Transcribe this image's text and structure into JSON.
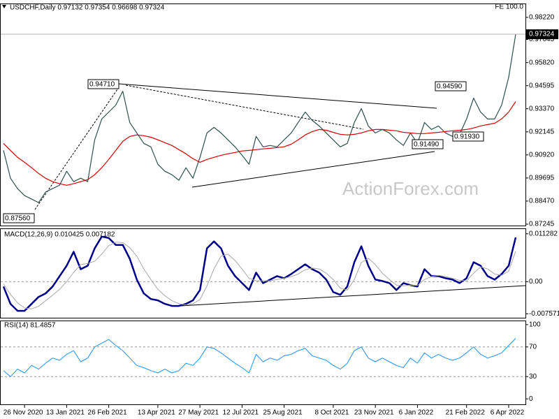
{
  "chart_data": [
    {
      "type": "line",
      "title": "USDCHF,Daily  0.97132 0.97354 0.96698 0.97324",
      "subtitle": "FE 100.0",
      "watermark": "ActionForex.com",
      "annotations": [
        "0.94710",
        "0.87560",
        "0.94590",
        "0.91490",
        "0.91930"
      ],
      "categories": [
        null,
        null,
        null,
        "26 Nov 2020",
        null,
        null,
        null,
        null,
        null,
        "13 Jan 2021",
        null,
        null,
        null,
        null,
        null,
        "26 Feb 2021",
        null,
        null,
        null,
        null,
        null,
        null,
        "13 Apr 2021",
        null,
        null,
        null,
        null,
        null,
        "27 May 2021",
        null,
        null,
        null,
        null,
        null,
        "12 Jul 2021",
        null,
        null,
        null,
        null,
        null,
        "25 Aug 2021",
        null,
        null,
        null,
        null,
        null,
        null,
        "8 Oct 2021",
        null,
        null,
        null,
        null,
        null,
        "23 Nov 2021",
        null,
        null,
        null,
        null,
        null,
        "6 Jan 2022",
        null,
        null,
        null,
        null,
        null,
        null,
        "21 Feb 2022",
        null,
        null,
        null,
        null,
        null,
        "6 Apr 2022",
        null
      ],
      "series": [
        {
          "color": "#2f4f4f",
          "values": [
            0.91163,
            0.89684,
            0.8913,
            0.88761,
            0.88576,
            0.88391,
            0.88946,
            0.8913,
            0.89315,
            0.90054,
            0.895,
            0.89684,
            0.895,
            0.91717,
            0.92825,
            0.93195,
            0.93564,
            0.94303,
            0.92641,
            0.92086,
            0.91532,
            0.91348,
            0.90424,
            0.90054,
            0.89869,
            0.89574,
            0.90239,
            0.89684,
            0.90793,
            0.92086,
            0.92382,
            0.92086,
            0.91717,
            0.91348,
            0.90904,
            0.90424,
            0.91902,
            0.91348,
            0.91421,
            0.91348,
            0.91717,
            0.92086,
            0.92641,
            0.93195,
            0.92752,
            0.92456,
            0.92086,
            0.91717,
            0.91348,
            0.91532,
            0.92641,
            0.93379,
            0.92456,
            0.92086,
            0.92271,
            0.92086,
            0.91717,
            0.91421,
            0.92086,
            0.91532,
            0.92641,
            0.92271,
            0.92456,
            0.92086,
            0.91902,
            0.92012,
            0.92825,
            0.93934,
            0.93195,
            0.92825,
            0.92825,
            0.93564,
            0.95042,
            0.97324
          ]
        },
        {
          "color": "#d40000",
          "values": [
            0.9153,
            0.9116,
            0.9079,
            0.9053,
            0.9024,
            0.8994,
            0.8968,
            0.895,
            0.8939,
            0.8931,
            0.8939,
            0.895,
            0.8961,
            0.8987,
            0.9024,
            0.9068,
            0.9116,
            0.9164,
            0.919,
            0.9198,
            0.9194,
            0.9186,
            0.9172,
            0.9157,
            0.9142,
            0.912,
            0.9098,
            0.9072,
            0.9053,
            0.9068,
            0.9079,
            0.909,
            0.9098,
            0.9105,
            0.9113,
            0.9116,
            0.912,
            0.9124,
            0.9127,
            0.9131,
            0.9135,
            0.9149,
            0.9172,
            0.9198,
            0.9216,
            0.9227,
            0.9223,
            0.9212,
            0.9201,
            0.9198,
            0.9201,
            0.9209,
            0.922,
            0.9227,
            0.9227,
            0.9223,
            0.922,
            0.9212,
            0.9209,
            0.9205,
            0.9205,
            0.9209,
            0.9212,
            0.9216,
            0.922,
            0.9223,
            0.9227,
            0.9235,
            0.9246,
            0.9253,
            0.926,
            0.9283,
            0.932,
            0.9375
          ]
        }
      ],
      "ylim": [
        0.8717,
        0.9892
      ],
      "yticks": [
        {
          "value": 0.9822,
          "label": "0.98220"
        },
        {
          "value": 0.97045,
          "label": "0.97045"
        },
        {
          "value": 0.9582,
          "label": "0.95820"
        },
        {
          "value": 0.94595,
          "label": "0.94595"
        },
        {
          "value": 0.9337,
          "label": "0.93370"
        },
        {
          "value": 0.92145,
          "label": "0.92145"
        },
        {
          "value": 0.9092,
          "label": "0.90920"
        },
        {
          "value": 0.89695,
          "label": "0.89695"
        },
        {
          "value": 0.8847,
          "label": "0.88470"
        },
        {
          "value": 0.87245,
          "label": "0.87245"
        }
      ]
    },
    {
      "type": "line",
      "title": "MACD(12,26,9) 0.010425 0.007182",
      "series": [
        {
          "color": "#00008b",
          "values": [
            -0.00114,
            -0.00523,
            -0.00687,
            -0.00687,
            -0.00523,
            -0.0036,
            -0.00278,
            -0.00114,
            0.00131,
            0.00376,
            0.00703,
            0.00294,
            0.00376,
            0.00785,
            0.01063,
            0.0103,
            0.00867,
            0.00867,
            0.0054,
            0.00049,
            -0.00278,
            -0.00409,
            -0.00441,
            -0.00523,
            -0.00572,
            -0.00572,
            -0.00523,
            -0.00441,
            -0.00196,
            0.00785,
            0.00948,
            0.00785,
            0.00376,
            0.00131,
            -0.00033,
            -0.00196,
            0.00213,
            -0.00033,
            0.00049,
            0.00131,
            0.00082,
            0.0018,
            0.00294,
            0.00409,
            0.00294,
            0.00213,
            0.00049,
            -0.00245,
            -0.00311,
            -0.00114,
            0.00458,
            0.00834,
            0.00376,
            0.00049,
            0.00016,
            -0.00033,
            -0.00196,
            -0.00033,
            -0.00082,
            -0.00114,
            0.00294,
            0.00131,
            0.00131,
            0.00082,
            0.00049,
            -0.00033,
            0.00082,
            0.00458,
            0.00376,
            0.00131,
            0.00049,
            0.0018,
            0.00376,
            0.010425
          ]
        },
        {
          "color": "#a9a9a9",
          "values": [
            -0.0005,
            -0.003,
            -0.005,
            -0.0062,
            -0.0064,
            -0.0058,
            -0.0045,
            -0.0032,
            -0.0018,
            0,
            0.0022,
            0.004,
            0.0043,
            0.0048,
            0.0065,
            0.0085,
            0.0093,
            0.0092,
            0.008,
            0.006,
            0.003,
            0.0005,
            -0.0018,
            -0.0033,
            -0.0045,
            -0.0052,
            -0.0055,
            -0.0052,
            -0.0042,
            -0.001,
            0.003,
            0.006,
            0.0065,
            0.005,
            0.003,
            0.0008,
            0.0002,
            0.0002,
            0.0002,
            0.0005,
            0.0008,
            0.0012,
            0.0018,
            0.0028,
            0.0032,
            0.003,
            0.002,
            0.0005,
            -0.0015,
            -0.002,
            0.0005,
            0.0045,
            0.0055,
            0.004,
            0.002,
            0.0005,
            -0.0008,
            -0.001,
            -0.0008,
            -0.0009,
            0.0005,
            0.0012,
            0.0015,
            0.0012,
            0.0008,
            0.0003,
            0.0002,
            0.002,
            0.0035,
            0.003,
            0.0018,
            0.0015,
            0.0025,
            0.007182
          ]
        }
      ],
      "ylim": [
        -0.0085,
        0.0124
      ],
      "yticks": [
        0.011282,
        {
          "value": 0,
          "label": "0.00"
        },
        -0.007571
      ]
    },
    {
      "type": "line",
      "title": "RSI(14) 81.4857",
      "series": [
        {
          "color": "#1e90ff",
          "values": [
            38,
            30,
            40,
            35,
            45,
            40,
            48,
            55,
            52,
            60,
            65,
            50,
            55,
            70,
            75,
            80,
            72,
            65,
            55,
            45,
            42,
            38,
            35,
            40,
            35,
            38,
            48,
            45,
            55,
            70,
            68,
            62,
            55,
            48,
            42,
            35,
            60,
            50,
            55,
            52,
            58,
            60,
            65,
            68,
            58,
            55,
            52,
            45,
            40,
            48,
            65,
            70,
            55,
            50,
            55,
            50,
            45,
            42,
            55,
            48,
            62,
            55,
            60,
            55,
            52,
            55,
            62,
            70,
            60,
            55,
            58,
            62,
            72,
            81.4857
          ]
        }
      ],
      "ylim": [
        -7.4,
        104.6
      ],
      "yticks": [
        100,
        70,
        30,
        0
      ]
    }
  ]
}
